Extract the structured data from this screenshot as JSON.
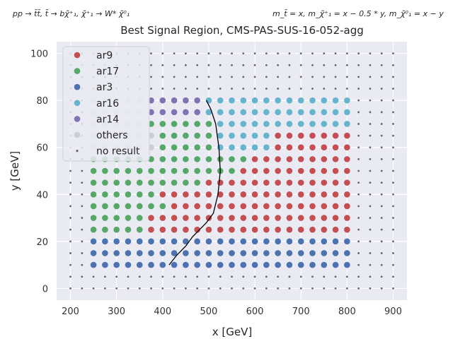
{
  "header": {
    "process": "pp → t̃t̃, t̃ → bχ̃⁺₁, χ̃⁺₁ → W* χ̃⁰₁",
    "mass_relation": "m_t̃ = x, m_χ̃⁺₁ = x − 0.5 * y, m_χ̃⁰₁ = x − y"
  },
  "chart_data": {
    "type": "scatter",
    "title": "Best Signal Region, CMS-PAS-SUS-16-052-agg",
    "xlabel": "x [GeV]",
    "ylabel": "y [GeV]",
    "xlim": [
      170,
      930
    ],
    "ylim": [
      -5,
      105
    ],
    "xticks": [
      "200",
      "300",
      "400",
      "500",
      "600",
      "700",
      "800",
      "900"
    ],
    "yticks": [
      "0",
      "20",
      "40",
      "60",
      "80",
      "100"
    ],
    "grid": true,
    "background": "#eaeaf2",
    "legend_location": "upper-left",
    "series": [
      {
        "name": "ar9",
        "color": "#c44e52",
        "points": []
      },
      {
        "name": "ar17",
        "color": "#55a868",
        "points": []
      },
      {
        "name": "ar3",
        "color": "#4c72b0",
        "points": []
      },
      {
        "name": "ar16",
        "color": "#64b5cd",
        "points": []
      },
      {
        "name": "ar14",
        "color": "#8172b2",
        "points": []
      },
      {
        "name": "others",
        "color": "#ccccdd",
        "points": []
      },
      {
        "name": "no result",
        "color": "#666666",
        "points": []
      }
    ],
    "contour": {
      "color": "#000000",
      "points": [
        [
          414,
          10
        ],
        [
          430,
          14
        ],
        [
          450,
          18
        ],
        [
          465,
          22
        ],
        [
          480,
          25
        ],
        [
          495,
          28
        ],
        [
          510,
          32
        ],
        [
          520,
          40
        ],
        [
          525,
          50
        ],
        [
          522,
          60
        ],
        [
          515,
          70
        ],
        [
          505,
          76
        ],
        [
          495,
          80
        ]
      ]
    }
  }
}
